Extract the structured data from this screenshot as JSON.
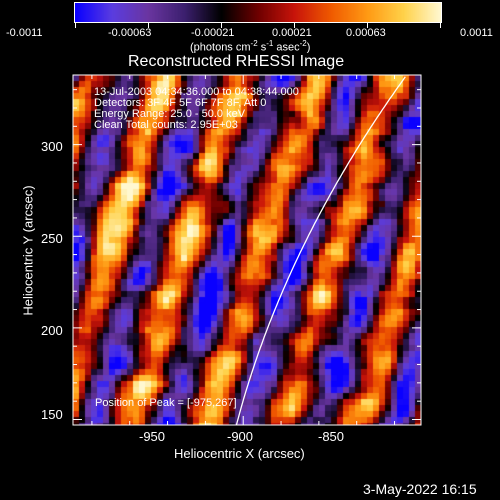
{
  "chart_data": {
    "type": "heatmap",
    "title": "Reconstructed RHESSI Image",
    "xlabel": "Heliocentric X (arcsec)",
    "ylabel": "Heliocentric Y (arcsec)",
    "xlim": [
      -995,
      -903
    ],
    "ylim": [
      147,
      338
    ],
    "xticks": [
      -950,
      -900,
      -850
    ],
    "yticks": [
      150,
      200,
      250,
      300
    ],
    "colorbar": {
      "min": -0.0011,
      "max": 0.0011,
      "ticks": [
        "-0.0011",
        "-0.00063",
        "-0.00021",
        "0.00021",
        "0.00063",
        "0.0011"
      ],
      "unit_label": "(photons cm",
      "unit_sup1": "-2",
      "unit_mid1": " s",
      "unit_sup2": "-1",
      "unit_mid2": " asec",
      "unit_sup3": "-2",
      "unit_end": ")"
    },
    "annotations": [
      "13-Jul-2003 04:34:36.000 to 04:38:44.000",
      "Detectors: 3F 4F 5F 6F 7F 8F, Att 0",
      "Energy Range: 25.0 - 50.0 keV",
      "Clean     Total counts: 2.95E+03"
    ],
    "peak_label": "Position of Peak = [-975,267]",
    "peak_position": [
      -975,
      267
    ],
    "limb": true
  },
  "timestamp": "3-May-2022 16:15",
  "colors": {
    "background": "#000000",
    "limb": "#ffffff",
    "colormap": [
      "#0a00ff",
      "#5a3ce0",
      "#6a35a0",
      "#3b1f6e",
      "#000000",
      "#6e0000",
      "#c8140a",
      "#f05a00",
      "#ff9a14",
      "#ffd24a",
      "#fff8d0"
    ]
  }
}
